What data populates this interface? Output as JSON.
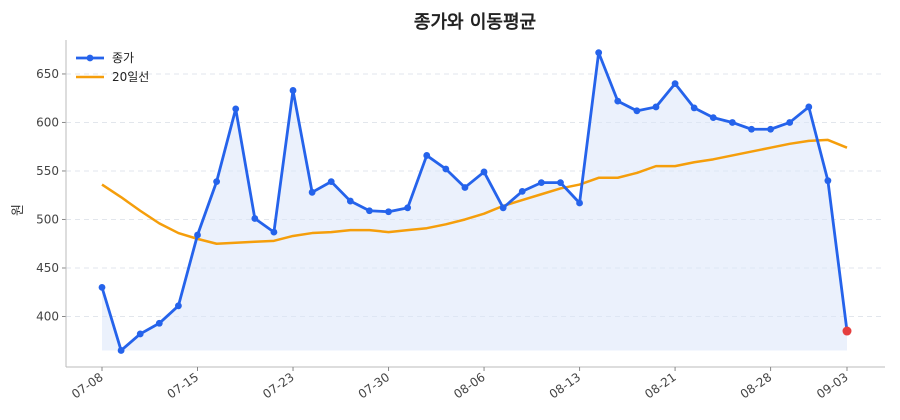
{
  "chart_data": {
    "type": "line",
    "title": "종가와 이동평균",
    "xlabel": "",
    "ylabel": "원",
    "ylim": [
      350,
      685
    ],
    "yticks": [
      400,
      450,
      500,
      550,
      600,
      650
    ],
    "grid": "horizontal dashed",
    "legend_position": "top-left",
    "x_tick_labels": [
      "07-08",
      "07-15",
      "07-23",
      "07-30",
      "08-06",
      "08-13",
      "08-21",
      "08-28",
      "09-03"
    ],
    "x_tick_index": [
      0,
      5,
      10,
      15,
      20,
      25,
      30,
      35,
      39
    ],
    "series": [
      {
        "name": "종가",
        "color": "#2563eb",
        "values": [
          430,
          365,
          382,
          393,
          411,
          484,
          539,
          614,
          501,
          487,
          633,
          528,
          539,
          519,
          509,
          508,
          512,
          566,
          552,
          533,
          549,
          512,
          529,
          538,
          538,
          517,
          672,
          622,
          612,
          616,
          640,
          615,
          605,
          600,
          593,
          593,
          600,
          616,
          540,
          385
        ]
      },
      {
        "name": "20일선",
        "color": "#f59e0b",
        "values": [
          536,
          523,
          509,
          496,
          486,
          480,
          475,
          476,
          477,
          478,
          483,
          486,
          487,
          489,
          489,
          487,
          489,
          491,
          495,
          500,
          506,
          514,
          520,
          526,
          532,
          536,
          543,
          543,
          548,
          555,
          555,
          559,
          562,
          566,
          570,
          574,
          578,
          581,
          582,
          574
        ]
      }
    ],
    "highlight_last_point_color": "#e53e3e",
    "area_fill_color": "#dbe6f9"
  }
}
